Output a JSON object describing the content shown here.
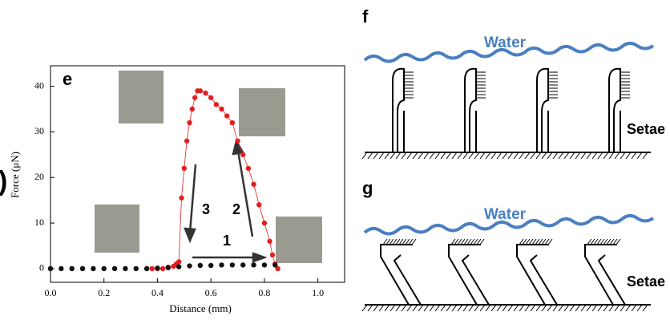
{
  "chart_data": {
    "type": "scatter",
    "panel_label": "e",
    "x_label": "Distance (mm)",
    "y_label": "Force (μN)",
    "xlim": [
      0,
      1.1
    ],
    "ylim": [
      -3,
      44.5
    ],
    "xticks": [
      {
        "value": 0,
        "label": "0.0"
      },
      {
        "value": 0.2,
        "label": "0.2"
      },
      {
        "value": 0.4,
        "label": "0.4"
      },
      {
        "value": 0.6,
        "label": "0.6"
      },
      {
        "value": 0.8,
        "label": "0.8"
      },
      {
        "value": 1,
        "label": "1.0"
      }
    ],
    "yticks": [
      0,
      10,
      20,
      30,
      40
    ],
    "annotations": [
      "1",
      "2",
      "3"
    ],
    "series": [
      {
        "color": "#e02020",
        "line": true,
        "x": [
          0.38,
          0.4,
          0.42,
          0.44,
          0.46,
          0.47,
          0.48,
          0.49,
          0.5,
          0.51,
          0.52,
          0.53,
          0.54,
          0.55,
          0.56,
          0.58,
          0.6,
          0.62,
          0.64,
          0.66,
          0.68,
          0.7,
          0.72,
          0.74,
          0.76,
          0.78,
          0.8,
          0.82,
          0.83,
          0.84,
          0.85
        ],
        "values": [
          0,
          0,
          0,
          0.3,
          0.5,
          1,
          1.5,
          15.5,
          22,
          28,
          32,
          35,
          37.5,
          39,
          39,
          38.5,
          37.5,
          36,
          35,
          33.5,
          32,
          28,
          25,
          22,
          18.5,
          14,
          10,
          6,
          3,
          1,
          0
        ]
      },
      {
        "color": "#111111",
        "line": false,
        "x": [
          0,
          0.04,
          0.08,
          0.12,
          0.16,
          0.2,
          0.24,
          0.28,
          0.32,
          0.36,
          0.4,
          0.44,
          0.48,
          0.52,
          0.56,
          0.6,
          0.64,
          0.68,
          0.72,
          0.76,
          0.8,
          0.84
        ],
        "values": [
          0,
          0,
          0,
          0,
          0,
          0,
          0,
          0,
          0,
          0,
          0.1,
          0.2,
          0.4,
          0.6,
          0.7,
          0.7,
          0.8,
          0.8,
          0.8,
          0.8,
          0.8,
          0.8
        ]
      }
    ]
  },
  "cropped_text": ")",
  "diagrams": [
    {
      "label": "f",
      "water": "Water",
      "setae": "Setae"
    },
    {
      "label": "g",
      "water": "Water",
      "setae": "Setae"
    }
  ]
}
